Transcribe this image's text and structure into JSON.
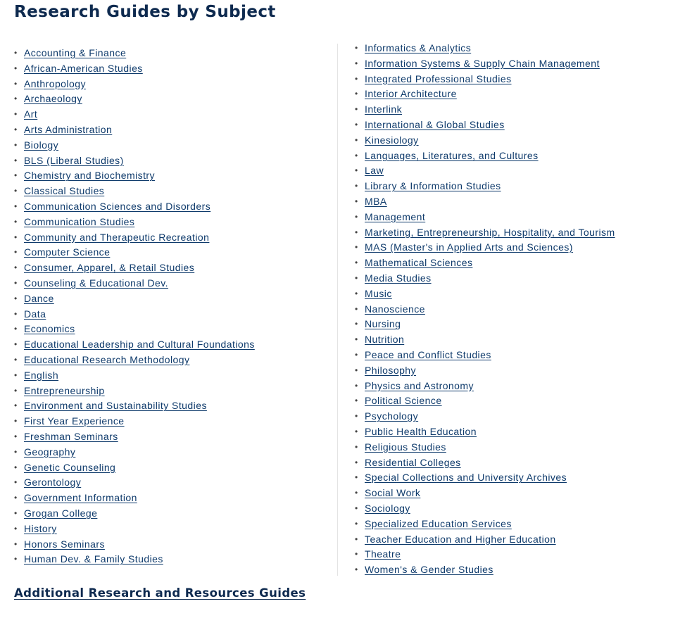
{
  "page_title": "Research Guides by Subject",
  "columns": {
    "left": [
      "Accounting & Finance",
      "African-American Studies",
      "Anthropology",
      "Archaeology",
      "Art",
      "Arts Administration",
      "Biology",
      "BLS (Liberal Studies)",
      "Chemistry and Biochemistry",
      "Classical Studies",
      "Communication Sciences and Disorders",
      "Communication Studies",
      "Community and Therapeutic Recreation",
      "Computer Science",
      "Consumer, Apparel, & Retail Studies",
      "Counseling & Educational Dev.",
      "Dance",
      "Data",
      "Economics",
      "Educational Leadership and Cultural Foundations",
      "Educational Research Methodology",
      "English",
      "Entrepreneurship",
      "Environment and Sustainability Studies",
      "First Year Experience",
      "Freshman Seminars",
      "Geography",
      "Genetic Counseling",
      "Gerontology",
      "Government Information",
      "Grogan College",
      "History",
      "Honors Seminars",
      "Human Dev. & Family Studies"
    ],
    "right": [
      "Informatics & Analytics",
      "Information Systems & Supply Chain Management",
      "Integrated Professional Studies",
      "Interior Architecture",
      "Interlink",
      "International & Global Studies",
      "Kinesiology",
      "Languages, Literatures, and Cultures",
      "Law",
      "Library & Information Studies",
      "MBA",
      "Management",
      "Marketing, Entrepreneurship, Hospitality, and Tourism",
      "MAS (Master's in Applied Arts and Sciences)",
      "Mathematical Sciences",
      "Media Studies",
      "Music",
      "Nanoscience",
      "Nursing",
      "Nutrition",
      "Peace and Conflict Studies",
      "Philosophy",
      "Physics and Astronomy",
      "Political Science",
      "Psychology",
      "Public Health Education",
      "Religious Studies",
      "Residential Colleges",
      "Special Collections and University Archives",
      "Social Work",
      "Sociology",
      "Specialized Education Services",
      "Teacher Education and Higher Education",
      "Theatre",
      "Women's & Gender Studies"
    ]
  },
  "additional_link": "Additional Research and Resources Guides",
  "colors": {
    "heading": "#0e2a4f",
    "link": "#0e3a6b",
    "bullet": "#444444",
    "divider": "#e4e4e4"
  }
}
